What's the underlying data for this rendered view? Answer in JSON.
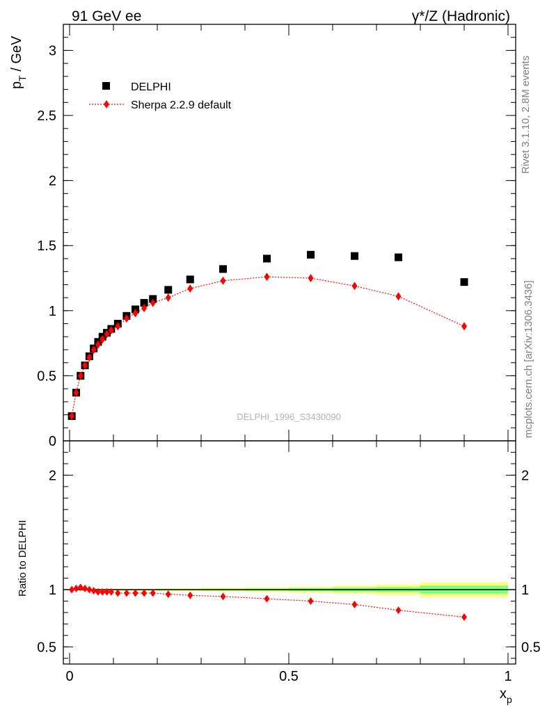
{
  "header": {
    "left": "91 GeV ee",
    "right": "γ*/Z (Hadronic)"
  },
  "side_text": {
    "top": "Rivet 3.1.10,  2.8M events",
    "bottom": "mcplots.cern.ch [arXiv:1306.3436]"
  },
  "watermark": "DELPHI_1996_S3430090",
  "chart_data": [
    {
      "type": "scatter",
      "ylabel_main": "p",
      "ylabel_sub": "T",
      "ylabel_unit": " / GeV",
      "xlim": [
        0,
        1
      ],
      "ylim": [
        0,
        3.2
      ],
      "yticks": [
        0,
        0.5,
        1,
        1.5,
        2,
        2.5,
        3
      ],
      "ytick_labels": [
        "0",
        "0.5",
        "1",
        "1.5",
        "2",
        "2.5",
        "3"
      ],
      "legend_position": "top-left",
      "series": [
        {
          "name": "DELPHI",
          "marker": "square",
          "color": "#000000",
          "x": [
            0.005,
            0.015,
            0.025,
            0.035,
            0.045,
            0.055,
            0.065,
            0.075,
            0.085,
            0.095,
            0.11,
            0.13,
            0.15,
            0.17,
            0.19,
            0.225,
            0.275,
            0.35,
            0.45,
            0.55,
            0.65,
            0.75,
            0.9
          ],
          "y": [
            0.19,
            0.37,
            0.5,
            0.58,
            0.65,
            0.71,
            0.76,
            0.8,
            0.83,
            0.86,
            0.9,
            0.96,
            1.01,
            1.06,
            1.09,
            1.16,
            1.24,
            1.32,
            1.4,
            1.43,
            1.42,
            1.41,
            1.22
          ]
        },
        {
          "name": "Sherpa 2.2.9 default",
          "marker": "diamond",
          "line": "dotted",
          "color": "#ff0000",
          "x": [
            0.005,
            0.015,
            0.025,
            0.035,
            0.045,
            0.055,
            0.065,
            0.075,
            0.085,
            0.095,
            0.11,
            0.13,
            0.15,
            0.17,
            0.19,
            0.225,
            0.275,
            0.35,
            0.45,
            0.55,
            0.65,
            0.75,
            0.9
          ],
          "y": [
            0.19,
            0.37,
            0.5,
            0.58,
            0.64,
            0.7,
            0.74,
            0.78,
            0.82,
            0.85,
            0.88,
            0.94,
            0.98,
            1.02,
            1.06,
            1.1,
            1.17,
            1.23,
            1.26,
            1.25,
            1.19,
            1.11,
            0.88
          ]
        }
      ]
    },
    {
      "type": "line",
      "ylabel": "Ratio to DELPHI",
      "xlabel_main": "x",
      "xlabel_sub": "p",
      "xlim": [
        0,
        1
      ],
      "ylim": [
        0.35,
        2.3
      ],
      "yticks": [
        0.5,
        1,
        2
      ],
      "ytick_labels": [
        "0.5",
        "1",
        "2"
      ],
      "xticks": [
        0,
        0.5,
        1
      ],
      "xtick_labels": [
        "0",
        "0.5",
        "1"
      ],
      "reference": 1.0,
      "bands": {
        "edges": [
          0.0,
          0.1,
          0.2,
          0.3,
          0.4,
          0.5,
          0.6,
          0.7,
          0.8,
          1.0
        ],
        "inner": [
          0.003,
          0.004,
          0.006,
          0.008,
          0.01,
          0.014,
          0.018,
          0.022,
          0.035
        ],
        "outer": [
          0.005,
          0.008,
          0.012,
          0.016,
          0.02,
          0.026,
          0.034,
          0.045,
          0.065
        ],
        "inner_color": "#7fff7f",
        "outer_color": "#ffff80"
      },
      "series": [
        {
          "name": "Sherpa 2.2.9 default",
          "marker": "diamond",
          "line": "dotted",
          "color": "#ff0000",
          "x": [
            0.005,
            0.015,
            0.025,
            0.035,
            0.045,
            0.055,
            0.065,
            0.075,
            0.085,
            0.095,
            0.11,
            0.13,
            0.15,
            0.17,
            0.19,
            0.225,
            0.275,
            0.35,
            0.45,
            0.55,
            0.65,
            0.75,
            0.9
          ],
          "y": [
            1.0,
            1.01,
            1.02,
            1.01,
            1.0,
            0.99,
            0.98,
            0.98,
            0.98,
            0.98,
            0.97,
            0.97,
            0.97,
            0.97,
            0.97,
            0.96,
            0.95,
            0.94,
            0.92,
            0.9,
            0.87,
            0.82,
            0.76
          ]
        }
      ]
    }
  ]
}
